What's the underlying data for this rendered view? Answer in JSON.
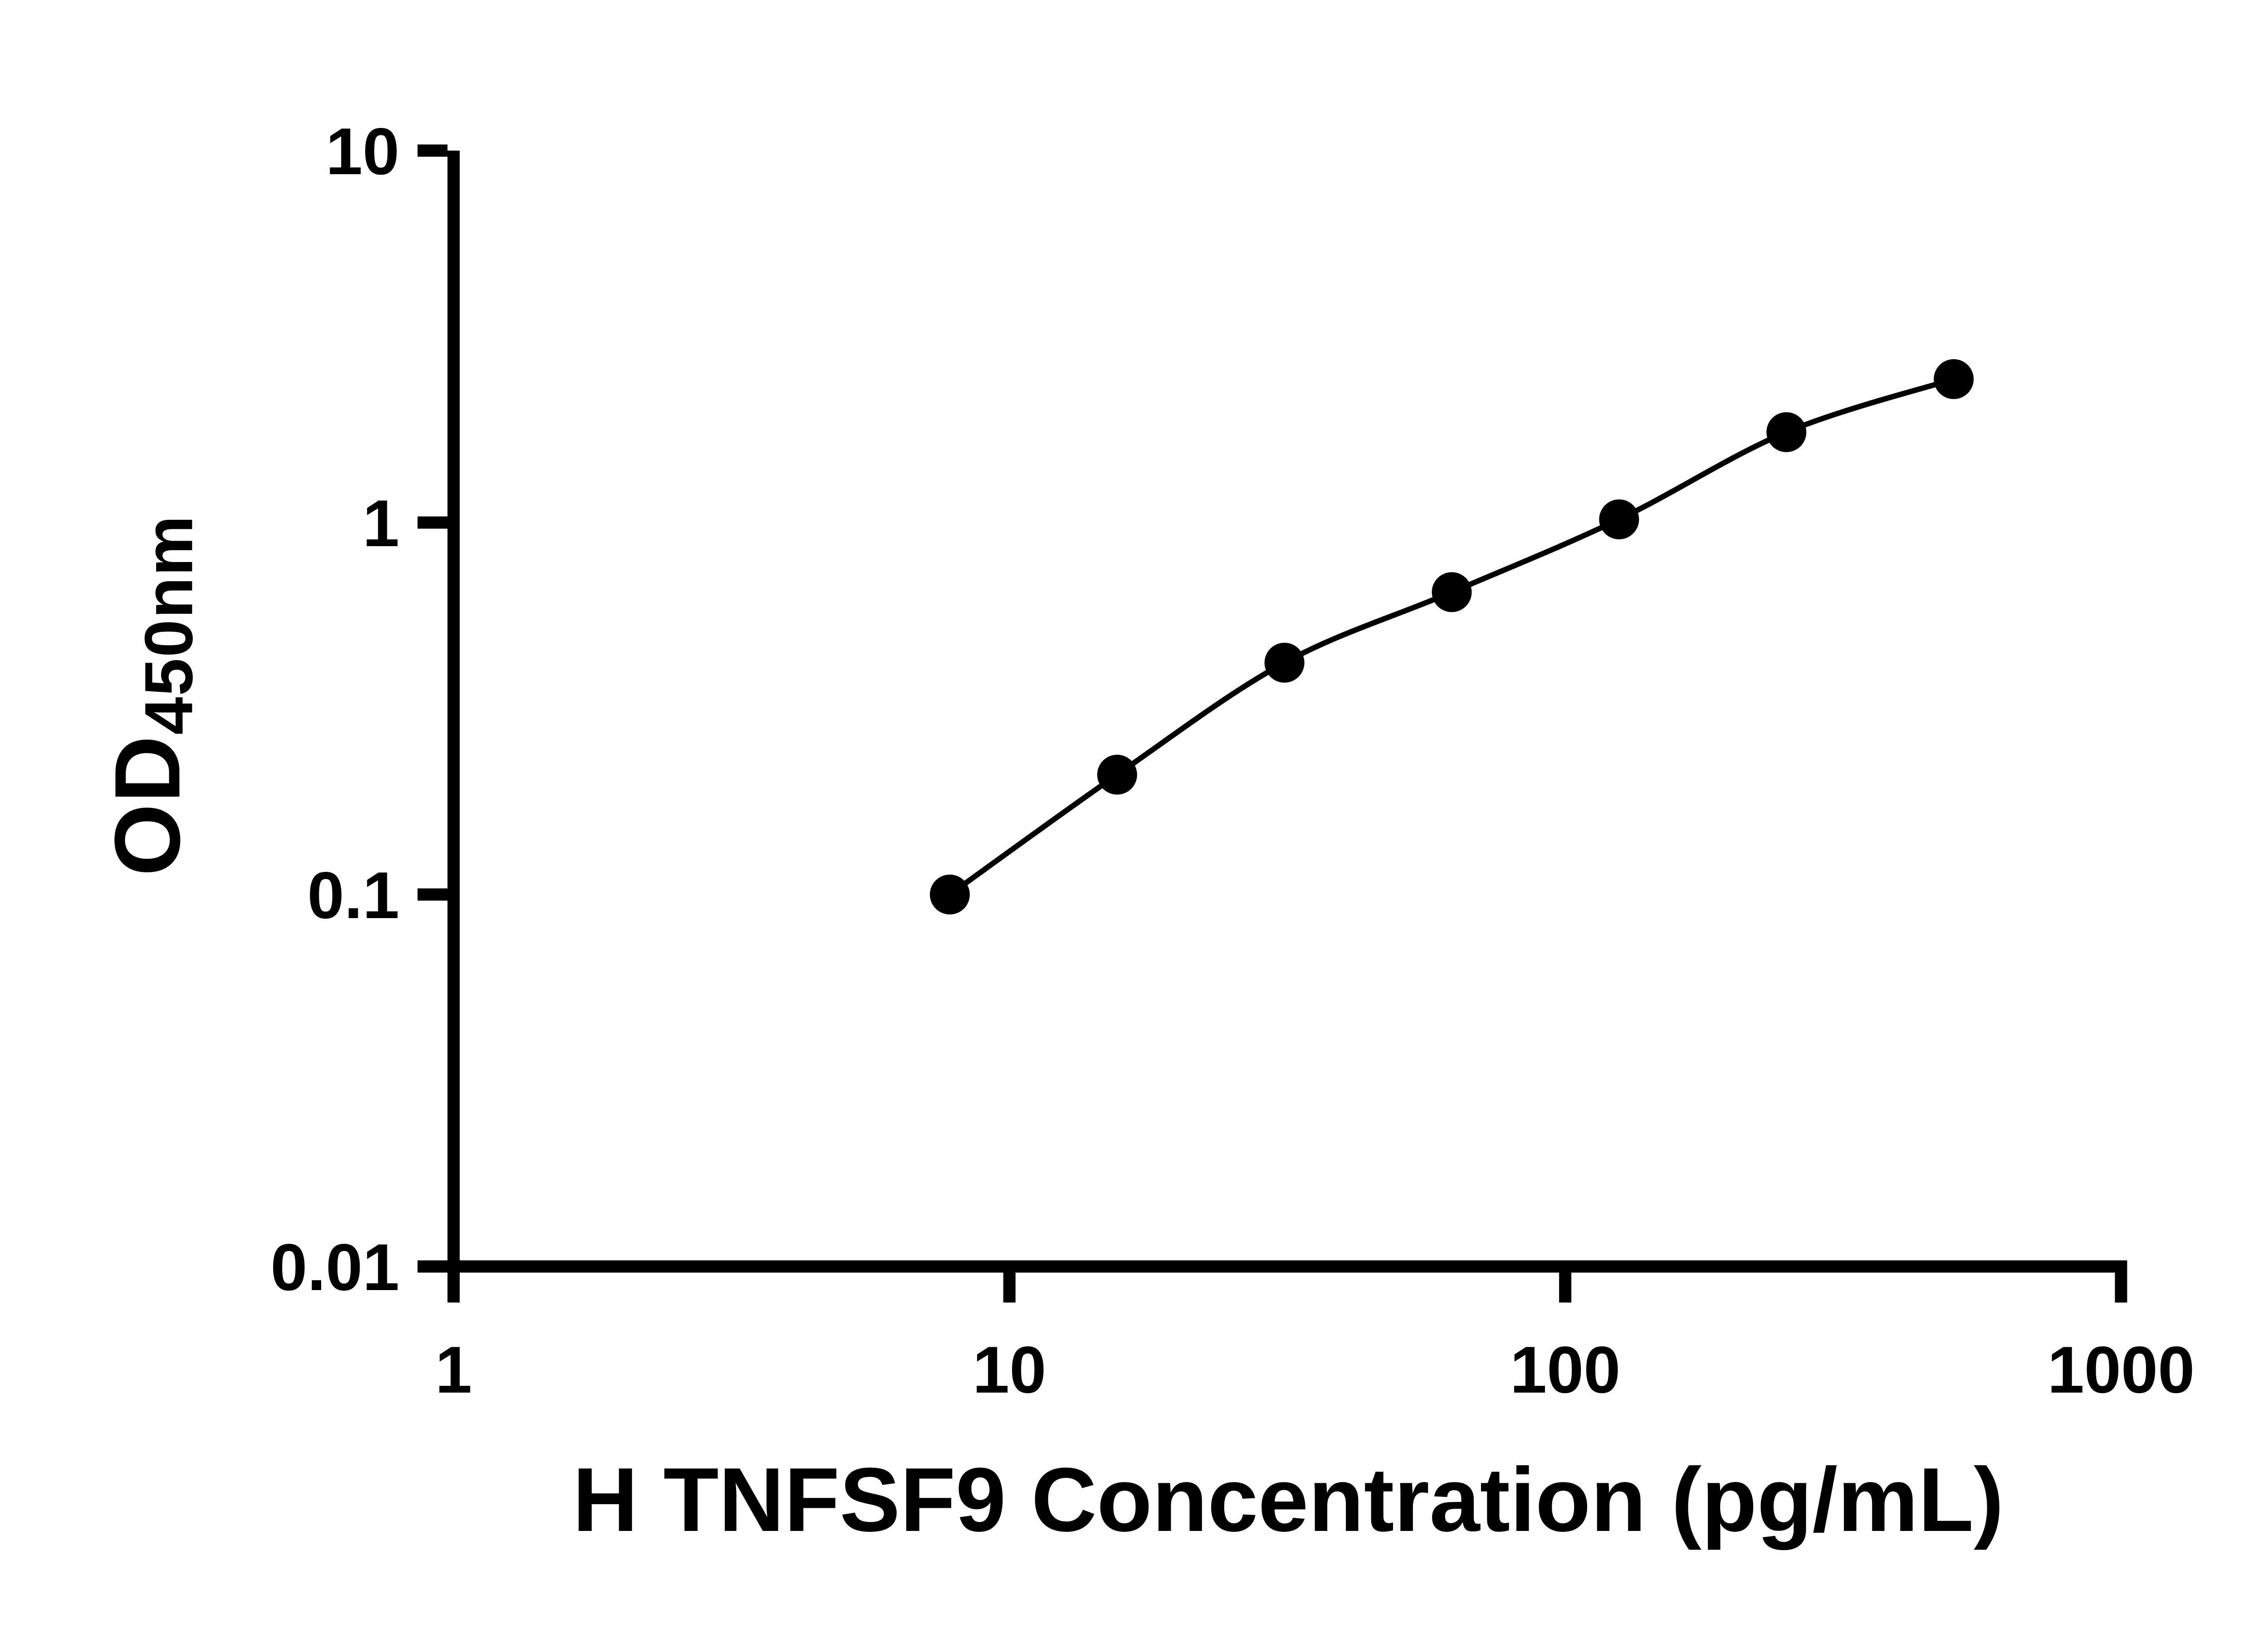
{
  "figure": {
    "background_color": "#ffffff",
    "axis_color": "#000000"
  },
  "chart_data": {
    "type": "scatter",
    "curve_style": "smooth fitted curve through points",
    "xlabel": "H TNFSF9 Concentration (pg/mL)",
    "ylabel_main": "OD",
    "ylabel_sub": "450nm",
    "x_scale": "log10",
    "y_scale": "log10",
    "xlim": [
      1,
      1000
    ],
    "ylim": [
      0.01,
      10
    ],
    "x_tick_values": [
      1,
      10,
      100,
      1000
    ],
    "x_tick_labels": [
      "1",
      "10",
      "100",
      "1000"
    ],
    "y_tick_values": [
      10,
      1,
      0.1,
      0.01
    ],
    "y_tick_labels": [
      "10",
      "1",
      "0.1",
      "0.01"
    ],
    "grid": false,
    "legend": "none",
    "marker": {
      "shape": "filled-circle",
      "fill": "#000000"
    },
    "line": {
      "color": "#000000"
    },
    "x": [
      7.8125,
      15.625,
      31.25,
      62.5,
      125,
      250,
      500
    ],
    "y": [
      0.1,
      0.21,
      0.42,
      0.65,
      1.02,
      1.75,
      2.43
    ]
  }
}
